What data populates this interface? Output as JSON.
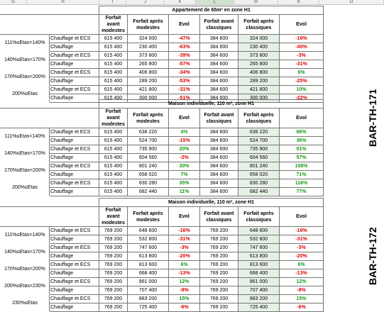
{
  "columns": [
    "G",
    "H",
    "I",
    "J",
    "K",
    "L",
    "M",
    "N",
    "O"
  ],
  "tables": [
    {
      "title": "Appartement de 65m² en zone H1",
      "headers": [
        "Forfait avant modestes",
        "Forfait après modestes",
        "Evol",
        "Forfait avant classiques",
        "Forfait après classiques",
        "Evol"
      ],
      "bands": [
        {
          "label": "111%≤Etas<140%",
          "rows": [
            {
              "usage": "Chauffage et ECS",
              "v": [
                "615 400",
                "324 000",
                "-47%",
                "384 600",
                "324 000",
                "-16%"
              ],
              "c": [
                "red",
                "red"
              ]
            },
            {
              "usage": "Chauffage",
              "v": [
                "615 400",
                "230 400",
                "-63%",
                "384 600",
                "230 400",
                "-40%"
              ],
              "c": [
                "red",
                "red"
              ]
            }
          ]
        },
        {
          "label": "140%≤Etas<170%",
          "rows": [
            {
              "usage": "Chauffage et ECS",
              "v": [
                "615 400",
                "373 800",
                "-39%",
                "384 600",
                "373 800",
                "-3%"
              ],
              "c": [
                "red",
                "red"
              ]
            },
            {
              "usage": "Chauffage",
              "v": [
                "615 400",
                "265 800",
                "-57%",
                "384 600",
                "265 800",
                "-31%"
              ],
              "c": [
                "red",
                "red"
              ]
            }
          ]
        },
        {
          "label": "170%≤Etas<200%",
          "rows": [
            {
              "usage": "Chauffage et ECS",
              "v": [
                "615 400",
                "406 800",
                "-34%",
                "384 600",
                "406 800",
                "6%"
              ],
              "c": [
                "red",
                "green"
              ]
            },
            {
              "usage": "Chauffage",
              "v": [
                "615 400",
                "289 200",
                "-53%",
                "384 600",
                "289 200",
                "-25%"
              ],
              "c": [
                "red",
                "red"
              ]
            }
          ]
        },
        {
          "label": "200%≤Etas",
          "rows": [
            {
              "usage": "Chauffage et ECS",
              "v": [
                "615 400",
                "421 800",
                "-31%",
                "384 600",
                "421 800",
                "10%"
              ],
              "c": [
                "red",
                "green"
              ]
            },
            {
              "usage": "Chauffage",
              "v": [
                "615 400",
                "300 000",
                "-51%",
                "384 600",
                "300 000",
                "-22%"
              ],
              "c": [
                "red",
                "red"
              ]
            }
          ]
        }
      ]
    },
    {
      "title": "Maison individuelle, 110 m², zone H1",
      "headers": [
        "Forfait avant modestes",
        "Forfait après modestes",
        "Evol",
        "Forfait avant classiques",
        "Forfait après classiques",
        "Evol"
      ],
      "bands": [
        {
          "label": "111%≤Etas<140%",
          "rows": [
            {
              "usage": "Chauffage et ECS",
              "v": [
                "615 400",
                "638 220",
                "4%",
                "384 600",
                "638 220",
                "66%"
              ],
              "c": [
                "green",
                "green"
              ]
            },
            {
              "usage": "Chauffage",
              "v": [
                "615 400",
                "524 700",
                "-15%",
                "384 600",
                "524 700",
                "36%"
              ],
              "c": [
                "red",
                "green"
              ]
            }
          ]
        },
        {
          "label": "140%≤Etas<170%",
          "rows": [
            {
              "usage": "Chauffage et ECS",
              "v": [
                "615 400",
                "735 900",
                "20%",
                "384 600",
                "735 900",
                "91%"
              ],
              "c": [
                "green",
                "green"
              ]
            },
            {
              "usage": "Chauffage",
              "v": [
                "615 400",
                "604 560",
                "-2%",
                "384 600",
                "604 560",
                "57%"
              ],
              "c": [
                "red",
                "green"
              ]
            }
          ]
        },
        {
          "label": "170%≤Etas<200%",
          "rows": [
            {
              "usage": "Chauffage et ECS",
              "v": [
                "615 400",
                "801 240",
                "30%",
                "384 600",
                "801 240",
                "108%"
              ],
              "c": [
                "green",
                "green"
              ]
            },
            {
              "usage": "Chauffage",
              "v": [
                "615 400",
                "658 020",
                "7%",
                "384 600",
                "658 020",
                "71%"
              ],
              "c": [
                "green",
                "green"
              ]
            }
          ]
        },
        {
          "label": "200%≤Etas",
          "rows": [
            {
              "usage": "Chauffage et ECS",
              "v": [
                "615 400",
                "830 280",
                "35%",
                "384 600",
                "830 280",
                "116%"
              ],
              "c": [
                "green",
                "green"
              ]
            },
            {
              "usage": "Chauffage",
              "v": [
                "615 400",
                "682 440",
                "11%",
                "384 600",
                "682 440",
                "77%"
              ],
              "c": [
                "green",
                "green"
              ]
            }
          ]
        }
      ]
    },
    {
      "title": "Maison individuelle, 110 m², zone H1",
      "headers": [
        "Forfait avant modestes",
        "Forfait après modestes",
        "Evol",
        "Forfait avant classiques",
        "Forfait après classiques",
        "Evol"
      ],
      "bands": [
        {
          "label": "111%≤Etas<140%",
          "rows": [
            {
              "usage": "Chauffage et ECS",
              "v": [
                "769 200",
                "648 600",
                "-16%",
                "769 200",
                "648 600",
                "-16%"
              ],
              "c": [
                "red",
                "red"
              ]
            },
            {
              "usage": "Chauffage",
              "v": [
                "769 200",
                "532 800",
                "-31%",
                "769 200",
                "532 800",
                "-31%"
              ],
              "c": [
                "red",
                "red"
              ]
            }
          ]
        },
        {
          "label": "140%≤Etas<170%",
          "rows": [
            {
              "usage": "Chauffage et ECS",
              "v": [
                "769 200",
                "747 600",
                "-3%",
                "769 200",
                "747 600",
                "-3%"
              ],
              "c": [
                "red",
                "red"
              ]
            },
            {
              "usage": "Chauffage",
              "v": [
                "769 200",
                "613 800",
                "-20%",
                "769 200",
                "613 800",
                "-20%"
              ],
              "c": [
                "red",
                "red"
              ]
            }
          ]
        },
        {
          "label": "170%≤Etas<200%",
          "rows": [
            {
              "usage": "Chauffage et ECS",
              "v": [
                "769 200",
                "813 600",
                "6%",
                "769 200",
                "813 600",
                "6%"
              ],
              "c": [
                "green",
                "green"
              ]
            },
            {
              "usage": "Chauffage",
              "v": [
                "769 200",
                "668 400",
                "-13%",
                "769 200",
                "668 400",
                "-13%"
              ],
              "c": [
                "red",
                "red"
              ]
            }
          ]
        },
        {
          "label": "200%≤Etas<230%",
          "rows": [
            {
              "usage": "Chauffage et ECS",
              "v": [
                "769 200",
                "861 000",
                "12%",
                "769 200",
                "861 000",
                "12%"
              ],
              "c": [
                "green",
                "green"
              ]
            },
            {
              "usage": "Chauffage",
              "v": [
                "769 200",
                "707 400",
                "-8%",
                "769 200",
                "707 400",
                "-8%"
              ],
              "c": [
                "red",
                "red"
              ]
            }
          ]
        },
        {
          "label": "230%≤Etas",
          "rows": [
            {
              "usage": "Chauffage et ECS",
              "v": [
                "769 200",
                "883 200",
                "15%",
                "769 200",
                "883 200",
                "15%"
              ],
              "c": [
                "green",
                "green"
              ]
            },
            {
              "usage": "Chauffage",
              "v": [
                "769 200",
                "725 400",
                "-6%",
                "769 200",
                "725 400",
                "-6%"
              ],
              "c": [
                "red",
                "red"
              ]
            }
          ]
        }
      ]
    }
  ],
  "side_labels": {
    "top": "BAR-TH-171",
    "bottom": "BAR-TH-172"
  },
  "colors": {
    "negative": "#e00000",
    "positive": "#169a16"
  }
}
